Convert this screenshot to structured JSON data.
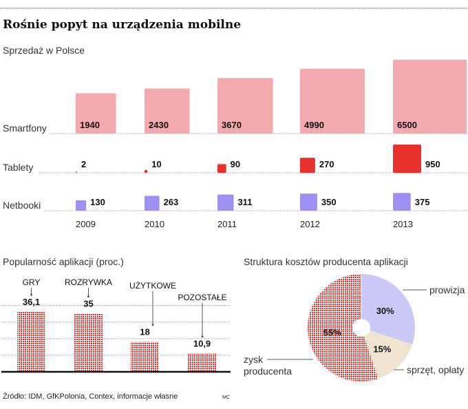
{
  "title": "Rośnie popyt na urządzenia mobilne",
  "source": "Źródło: IDM, GfKPolonia, Contex, informacje własne",
  "author": "MC",
  "chart_data": [
    {
      "type": "bar",
      "subtitle": "Sprzedaż w Polsce",
      "categories": [
        "2009",
        "2010",
        "2011",
        "2012",
        "2013"
      ],
      "encoding": "square area proportional to value",
      "series": [
        {
          "name": "Smartfony",
          "values": [
            1940,
            2430,
            3670,
            4990,
            6500
          ],
          "color": "#f2aaae"
        },
        {
          "name": "Tablety",
          "values": [
            2,
            10,
            90,
            270,
            950
          ],
          "color": "#e8302c"
        },
        {
          "name": "Netbooki",
          "values": [
            130,
            263,
            311,
            350,
            375
          ],
          "color": "#9d92f3"
        }
      ]
    },
    {
      "type": "bar",
      "title": "Popularność aplikacji (proc.)",
      "categories": [
        "GRY",
        "ROZRYWKA",
        "UŻYTKOWE",
        "POZOSTAŁE"
      ],
      "values": [
        36.1,
        35,
        18,
        10.9
      ],
      "value_labels": [
        "36,1",
        "35",
        "18",
        "10,9"
      ],
      "ylim": [
        0,
        40
      ],
      "grid": true,
      "color": "#e8302c"
    },
    {
      "type": "pie",
      "title": "Struktura kosztów producenta aplikacji",
      "slices": [
        {
          "label": "prowizja",
          "value": 30,
          "value_label": "30%",
          "color": "#cbc9f6"
        },
        {
          "label": "sprzęt, opłaty",
          "value": 15,
          "value_label": "15%",
          "color": "#efe4d0"
        },
        {
          "label": "zysk producenta",
          "label_lines": [
            "zysk",
            "producenta"
          ],
          "value": 55,
          "value_label": "55%",
          "color": "#e8302c"
        }
      ]
    }
  ]
}
